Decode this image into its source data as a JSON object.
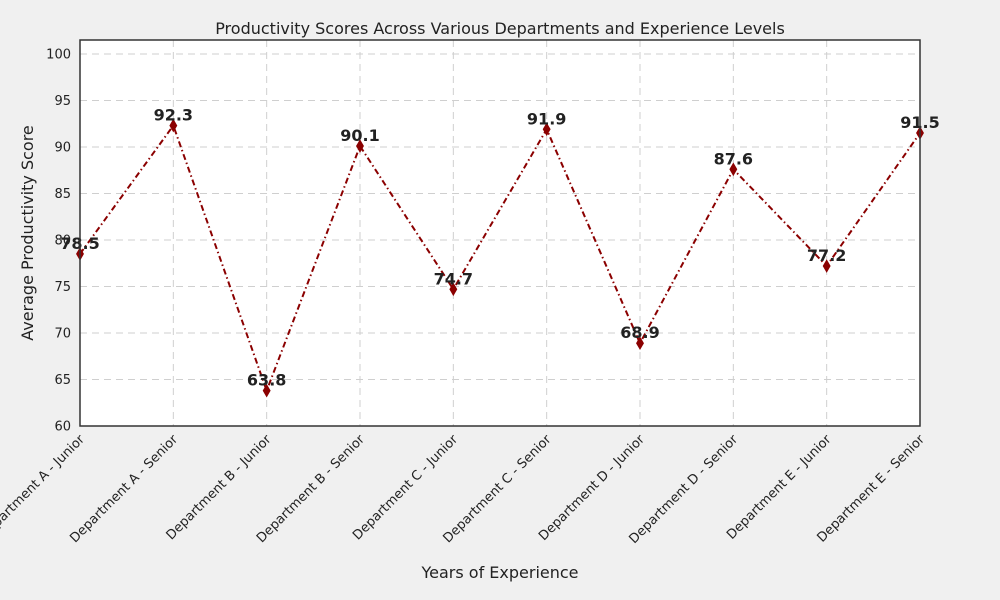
{
  "chart_data": {
    "type": "line",
    "title": "Productivity Scores Across Various Departments and Experience Levels",
    "xlabel": "Years of Experience",
    "ylabel": "Average Productivity Score",
    "categories": [
      "Department A - Junior",
      "Department A - Senior",
      "Department B - Junior",
      "Department B - Senior",
      "Department C - Junior",
      "Department C - Senior",
      "Department D - Junior",
      "Department D - Senior",
      "Department E - Junior",
      "Department E - Senior"
    ],
    "series": [
      {
        "values": [
          78.5,
          92.3,
          63.8,
          90.1,
          74.7,
          91.9,
          68.9,
          87.6,
          77.2,
          91.5
        ],
        "data_labels": [
          "78.5",
          "92.3",
          "63.8",
          "90.1",
          "74.7",
          "91.9",
          "68.9",
          "87.6",
          "77.2",
          "91.5"
        ],
        "color": "#8b0000",
        "line_style": "dash-dot",
        "marker": "thin-diamond"
      }
    ],
    "ylim": [
      60,
      101.5
    ],
    "yticks": [
      "60",
      "65",
      "70",
      "75",
      "80",
      "85",
      "90",
      "95",
      "100"
    ],
    "grid": true,
    "legend": "none",
    "background": "#f0f0f0",
    "plot_background": "#ffffff"
  }
}
